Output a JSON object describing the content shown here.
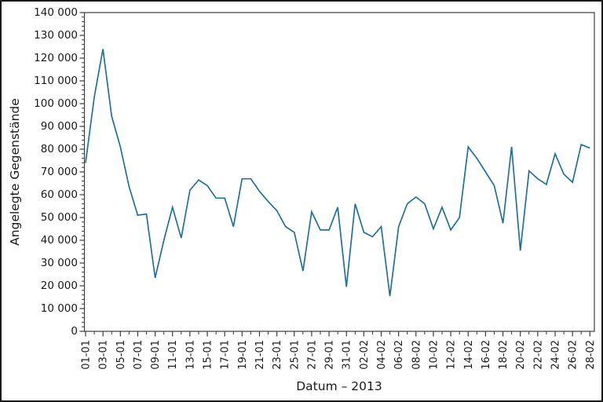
{
  "figure": {
    "background": "#ffffff",
    "border_color": "#1a1a1a",
    "axis_color": "#3c3c3c"
  },
  "chart_data": {
    "type": "line",
    "title": "",
    "xlabel": "Datum – 2013",
    "ylabel": "Angelegte Gegenstände",
    "line_color": "#20719C",
    "grid": "off",
    "legend": "none",
    "ylim": [
      0,
      140000
    ],
    "y_major_step": 10000,
    "y_minor_step": 2000,
    "y_tick_labels": [
      "0",
      "10 000",
      "20 000",
      "30 000",
      "40 000",
      "50 000",
      "60 000",
      "70 000",
      "80 000",
      "90 000",
      "100 000",
      "110 000",
      "120 000",
      "130 000",
      "140 000"
    ],
    "x_tick_labels": [
      "01-01",
      "03-01",
      "05-01",
      "07-01",
      "09-01",
      "11-01",
      "13-01",
      "15-01",
      "17-01",
      "19-01",
      "21-01",
      "23-01",
      "25-01",
      "27-01",
      "29-01",
      "31-01",
      "02-02",
      "04-02",
      "06-02",
      "08-02",
      "10-02",
      "12-02",
      "14-02",
      "16-02",
      "18-02",
      "20-02",
      "22-02",
      "24-02",
      "26-02",
      "28-02"
    ],
    "categories": [
      "01-01",
      "02-01",
      "03-01",
      "04-01",
      "05-01",
      "06-01",
      "07-01",
      "08-01",
      "09-01",
      "10-01",
      "11-01",
      "12-01",
      "13-01",
      "14-01",
      "15-01",
      "16-01",
      "17-01",
      "18-01",
      "19-01",
      "20-01",
      "21-01",
      "22-01",
      "23-01",
      "24-01",
      "25-01",
      "26-01",
      "27-01",
      "28-01",
      "29-01",
      "30-01",
      "31-01",
      "01-02",
      "02-02",
      "03-02",
      "04-02",
      "05-02",
      "06-02",
      "07-02",
      "08-02",
      "09-02",
      "10-02",
      "11-02",
      "12-02",
      "13-02",
      "14-02",
      "15-02",
      "16-02",
      "17-02",
      "18-02",
      "19-02",
      "20-02",
      "21-02",
      "22-02",
      "23-02",
      "24-02",
      "25-02",
      "26-02",
      "27-02",
      "28-02"
    ],
    "values": [
      74000,
      103000,
      124000,
      94500,
      81000,
      63500,
      51000,
      51500,
      23500,
      40000,
      54500,
      41000,
      62000,
      66500,
      64000,
      58500,
      58500,
      46000,
      67000,
      67000,
      61500,
      57000,
      53000,
      46000,
      43500,
      26500,
      52500,
      44500,
      44500,
      54500,
      19500,
      56000,
      43500,
      41500,
      46000,
      15500,
      46000,
      56000,
      59000,
      56000,
      45000,
      54500,
      44500,
      50000,
      81000,
      76000,
      70000,
      64000,
      47500,
      81000,
      35500,
      70500,
      67000,
      64500,
      78000,
      69000,
      65500,
      82000,
      80500
    ]
  }
}
